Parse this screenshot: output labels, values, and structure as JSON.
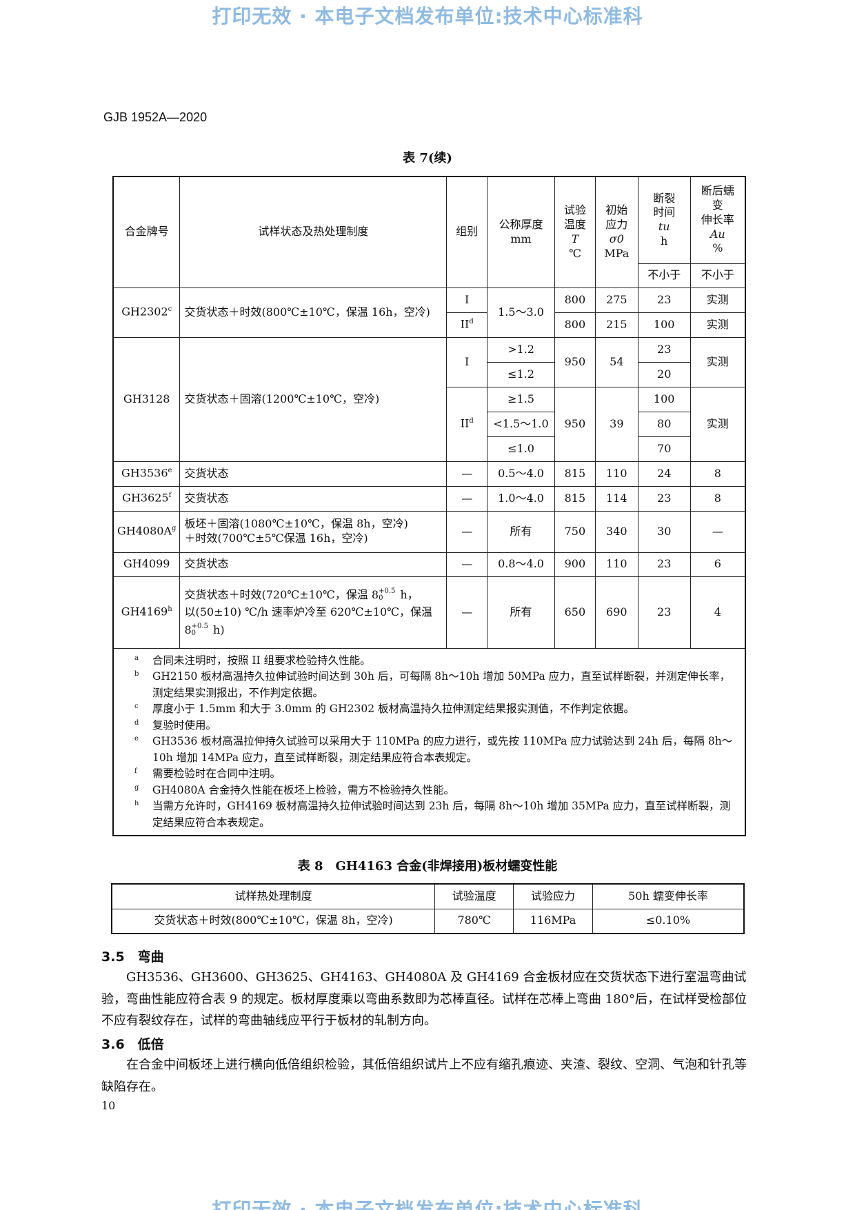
{
  "watermark": "打印无效 · 本电子文档发布单位:技术中心标准科",
  "header": "GJB 1952A—2020",
  "table7": {
    "title": "表 7(续)",
    "headers": {
      "alloy": "合金牌号",
      "treatment": "试样状态及热处理制度",
      "group": "组别",
      "thickness": [
        "公称厚度",
        "mm"
      ],
      "temp": [
        "试验",
        "温度",
        "T",
        "℃"
      ],
      "stress": [
        "初始",
        "应力",
        "σ0",
        "MPa"
      ],
      "rupture": [
        "断裂",
        "时间",
        "tu",
        "h"
      ],
      "elong": [
        "断后蠕",
        "变",
        "伸长率",
        "Au",
        "%"
      ],
      "not_less": "不小于"
    },
    "rows": {
      "gh2302": {
        "alloy": "GH2302",
        "sup": "c",
        "treatment": "交货状态＋时效(800℃±10℃，保温 16h，空冷)",
        "thickness": "1.5～3.0",
        "r1": {
          "group": "I",
          "temp": "800",
          "stress": "275",
          "time": "23",
          "elong": "实测"
        },
        "r2": {
          "group": "II",
          "gsup": "d",
          "temp": "800",
          "stress": "215",
          "time": "100",
          "elong": "实测"
        }
      },
      "gh3128": {
        "alloy": "GH3128",
        "treatment": "交货状态＋固溶(1200℃±10℃，空冷)",
        "g1": {
          "group": "I",
          "th": [
            ">1.2",
            "≤1.2"
          ],
          "temp": "950",
          "stress": "54",
          "time": [
            "23",
            "20"
          ],
          "elong": "实测"
        },
        "g2": {
          "group": "II",
          "gsup": "d",
          "th": [
            "≥1.5",
            "<1.5～1.0",
            "≤1.0"
          ],
          "temp": "950",
          "stress": "39",
          "time": [
            "100",
            "80",
            "70"
          ],
          "elong": "实测"
        }
      },
      "gh3536": {
        "alloy": "GH3536",
        "sup": "e",
        "treatment": "交货状态",
        "group": "—",
        "thickness": "0.5～4.0",
        "temp": "815",
        "stress": "110",
        "time": "24",
        "elong": "8"
      },
      "gh3625": {
        "alloy": "GH3625",
        "sup": "f",
        "treatment": "交货状态",
        "group": "—",
        "thickness": "1.0～4.0",
        "temp": "815",
        "stress": "114",
        "time": "23",
        "elong": "8"
      },
      "gh4080a": {
        "alloy": "GH4080A",
        "sup": "g",
        "treatment": [
          "板坯＋固溶(1080℃±10℃，保温 8h，空冷)",
          "＋时效(700℃±5℃保温 16h，空冷)"
        ],
        "group": "—",
        "thickness": "所有",
        "temp": "750",
        "stress": "340",
        "time": "30",
        "elong": "—"
      },
      "gh4099": {
        "alloy": "GH4099",
        "treatment": "交货状态",
        "group": "—",
        "thickness": "0.8～4.0",
        "temp": "900",
        "stress": "110",
        "time": "23",
        "elong": "6"
      },
      "gh4169": {
        "alloy": "GH4169",
        "sup": "h",
        "treatment": {
          "a": "交货状态＋时效(720℃±10℃，保温 8",
          "b": " h，",
          "c": "以(50±10) ℃/h 速率炉冷至 620℃±10℃，保温",
          "d": "8",
          "e": " h)",
          "tol_up": "+0.5",
          "tol_low": "0"
        },
        "group": "—",
        "thickness": "所有",
        "temp": "650",
        "stress": "690",
        "time": "23",
        "elong": "4"
      }
    },
    "notes": [
      {
        "key": "a",
        "text": "合同未注明时，按照 II 组要求检验持久性能。"
      },
      {
        "key": "b",
        "text": "GH2150 板材高温持久拉伸试验时间达到 30h 后，可每隔 8h～10h 增加 50MPa 应力，直至试样断裂，并测定伸长率，测定结果实测报出，不作判定依据。"
      },
      {
        "key": "c",
        "text": "厚度小于 1.5mm 和大于 3.0mm 的 GH2302 板材高温持久拉伸测定结果报实测值，不作判定依据。"
      },
      {
        "key": "d",
        "text": "复验时使用。"
      },
      {
        "key": "e",
        "text": "GH3536 板材高温拉伸持久试验可以采用大于 110MPa 的应力进行，或先按 110MPa 应力试验达到 24h 后，每隔 8h～10h 增加 14MPa 应力，直至试样断裂，测定结果应符合本表规定。"
      },
      {
        "key": "f",
        "text": "需要检验时在合同中注明。"
      },
      {
        "key": "g",
        "text": "GH4080A 合金持久性能在板坯上检验，需方不检验持久性能。"
      },
      {
        "key": "h",
        "text": "当需方允许时，GH4169 板材高温持久拉伸试验时间达到 23h 后，每隔 8h～10h 增加 35MPa 应力，直至试样断裂，测定结果应符合本表规定。"
      }
    ]
  },
  "table8": {
    "title": "表 8　GH4163 合金(非焊接用)板材蠕变性能",
    "headers": [
      "试样热处理制度",
      "试验温度",
      "试验应力",
      "50h 蠕变伸长率"
    ],
    "row": [
      "交货状态＋时效(800℃±10℃，保温 8h，空冷)",
      "780℃",
      "116MPa",
      "≤0.10%"
    ]
  },
  "sections": [
    {
      "heading": "3.5　弯曲",
      "text": "GH3536、GH3600、GH3625、GH4163、GH4080A 及 GH4169 合金板材应在交货状态下进行室温弯曲试验，弯曲性能应符合表 9 的规定。板材厚度乘以弯曲系数即为芯棒直径。试样在芯棒上弯曲 180°后，在试样受检部位不应有裂纹存在，试样的弯曲轴线应平行于板材的轧制方向。"
    },
    {
      "heading": "3.6　低倍",
      "text": "在合金中间板坯上进行横向低倍组织检验，其低倍组织试片上不应有缩孔痕迹、夹渣、裂纹、空洞、气泡和针孔等缺陷存在。"
    }
  ],
  "page_number": "10"
}
